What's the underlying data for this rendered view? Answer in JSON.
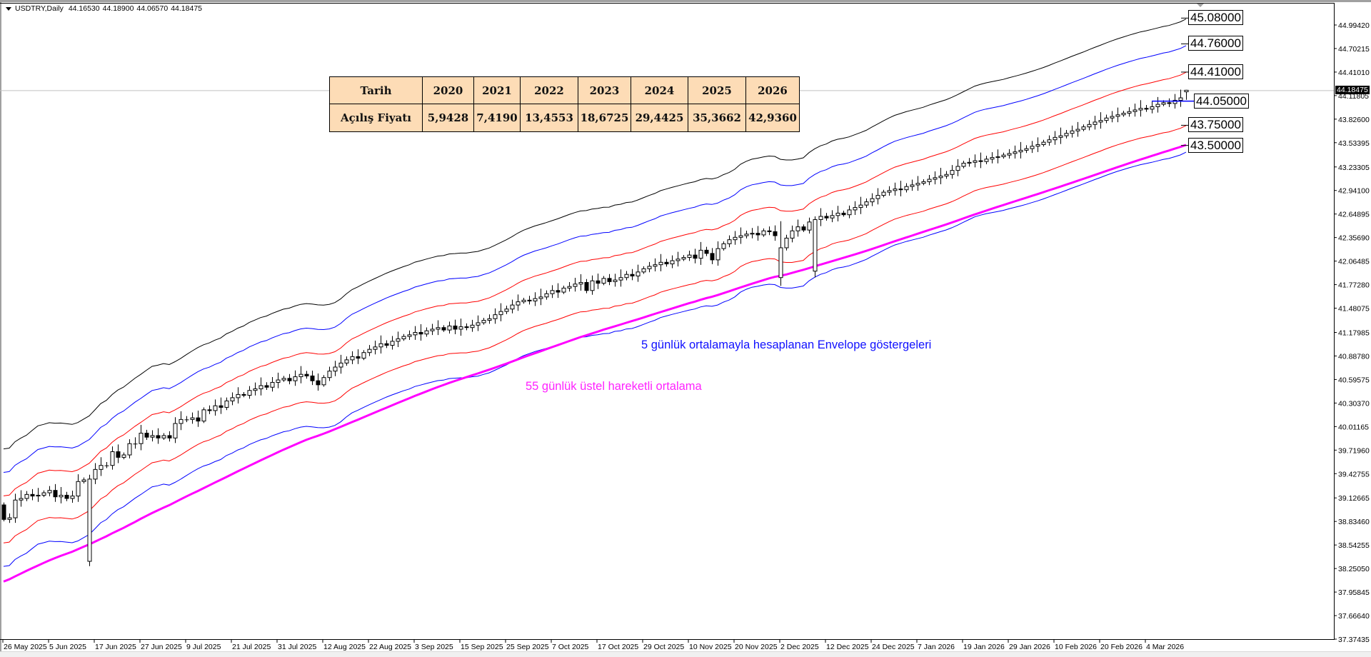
{
  "header": {
    "symbol": "USDTRY,Daily",
    "open": "44.16530",
    "high": "44.18900",
    "low": "44.06570",
    "close": "44.18475"
  },
  "table": {
    "header_label": "Tarih",
    "row_label": "Açılış Fiyatı",
    "years": [
      "2020",
      "2021",
      "2022",
      "2023",
      "2024",
      "2025",
      "2026"
    ],
    "opening_prices": [
      "5,9428",
      "7,4190",
      "13,4553",
      "18,6725",
      "29,4425",
      "35,3662",
      "42,9360"
    ]
  },
  "annotations": {
    "envelope": "5 günlük ortalamayla hesaplanan Envelope göstergeleri",
    "ema": "55 günlük üstel hareketli ortalama"
  },
  "price_labels": [
    {
      "text": "45.08000",
      "value": 45.08
    },
    {
      "text": "44.76000",
      "value": 44.76
    },
    {
      "text": "44.41000",
      "value": 44.41
    },
    {
      "text": "44.05000",
      "value": 44.05
    },
    {
      "text": "43.75000",
      "value": 43.75
    },
    {
      "text": "43.50000",
      "value": 43.5
    }
  ],
  "current_price": "44.18475",
  "colors": {
    "envelope_outer": "#000000",
    "envelope_mid": "#0000ff",
    "envelope_inner": "#ff0000",
    "ema": "#ff00ff",
    "price_line": "#c0c0c0",
    "table_bg": "#fddcb6"
  },
  "chart_data": {
    "type": "candlestick",
    "title": "USDTRY,Daily",
    "y_ticks": [
      "44.99420",
      "44.70215",
      "44.41010",
      "44.11805",
      "43.82600",
      "43.53395",
      "43.23305",
      "42.94100",
      "42.64895",
      "42.35690",
      "42.06485",
      "41.77280",
      "41.48075",
      "41.17985",
      "40.88780",
      "40.59575",
      "40.30370",
      "40.01165",
      "39.71960",
      "39.42755",
      "39.12665",
      "38.83460",
      "38.54255",
      "38.25050",
      "37.95845",
      "37.66640",
      "37.37435"
    ],
    "ylim": [
      37.37435,
      45.0
    ],
    "x_ticks": [
      {
        "bar": 0,
        "label": "26 May 2025"
      },
      {
        "bar": 8,
        "label": "5 Jun 2025"
      },
      {
        "bar": 16,
        "label": "17 Jun 2025"
      },
      {
        "bar": 24,
        "label": "27 Jun 2025"
      },
      {
        "bar": 32,
        "label": "9 Jul 2025"
      },
      {
        "bar": 40,
        "label": "21 Jul 2025"
      },
      {
        "bar": 48,
        "label": "31 Jul 2025"
      },
      {
        "bar": 56,
        "label": "12 Aug 2025"
      },
      {
        "bar": 64,
        "label": "22 Aug 2025"
      },
      {
        "bar": 72,
        "label": "3 Sep 2025"
      },
      {
        "bar": 80,
        "label": "15 Sep 2025"
      },
      {
        "bar": 88,
        "label": "25 Sep 2025"
      },
      {
        "bar": 96,
        "label": "7 Oct 2025"
      },
      {
        "bar": 104,
        "label": "17 Oct 2025"
      },
      {
        "bar": 112,
        "label": "29 Oct 2025"
      },
      {
        "bar": 120,
        "label": "10 Nov 2025"
      },
      {
        "bar": 128,
        "label": "20 Nov 2025"
      },
      {
        "bar": 136,
        "label": "2 Dec 2025"
      },
      {
        "bar": 144,
        "label": "12 Dec 2025"
      },
      {
        "bar": 152,
        "label": "24 Dec 2025"
      },
      {
        "bar": 160,
        "label": "7 Jan 2026"
      },
      {
        "bar": 168,
        "label": "19 Jan 2026"
      },
      {
        "bar": 176,
        "label": "29 Jan 2026"
      },
      {
        "bar": 184,
        "label": "10 Feb 2026"
      },
      {
        "bar": 192,
        "label": "20 Feb 2026"
      },
      {
        "bar": 200,
        "label": "4 Mar 2026"
      }
    ],
    "closes": [
      38.86,
      38.88,
      39.1,
      39.12,
      39.17,
      39.15,
      39.16,
      39.19,
      39.22,
      39.14,
      39.16,
      39.12,
      39.15,
      39.33,
      39.35,
      39.36,
      39.48,
      39.53,
      39.53,
      39.7,
      39.63,
      39.66,
      39.8,
      39.8,
      39.93,
      39.88,
      39.9,
      39.87,
      39.9,
      39.87,
      40.05,
      40.1,
      40.1,
      40.12,
      40.08,
      40.22,
      40.21,
      40.27,
      40.25,
      40.33,
      40.37,
      40.41,
      40.4,
      40.46,
      40.48,
      40.52,
      40.5,
      40.56,
      40.59,
      40.61,
      40.58,
      40.63,
      40.66,
      40.64,
      40.58,
      40.53,
      40.62,
      40.7,
      40.75,
      40.8,
      40.84,
      40.88,
      40.86,
      40.93,
      40.97,
      41.0,
      41.04,
      41.02,
      41.07,
      41.1,
      41.13,
      41.15,
      41.18,
      41.16,
      41.2,
      41.22,
      41.24,
      41.21,
      41.26,
      41.22,
      41.25,
      41.24,
      41.27,
      41.3,
      41.33,
      41.35,
      41.4,
      41.44,
      41.47,
      41.52,
      41.56,
      41.58,
      41.57,
      41.6,
      41.62,
      41.66,
      41.7,
      41.68,
      41.73,
      41.75,
      41.78,
      41.8,
      41.7,
      41.82,
      41.79,
      41.85,
      41.81,
      41.83,
      41.86,
      41.9,
      41.88,
      41.93,
      41.97,
      42.0,
      42.02,
      42.05,
      42.03,
      42.07,
      42.09,
      42.11,
      42.14,
      42.1,
      42.2,
      42.16,
      42.08,
      42.22,
      42.28,
      42.33,
      42.36,
      42.38,
      42.4,
      42.41,
      42.39,
      42.44,
      42.43,
      42.38,
      42.23,
      42.35,
      42.44,
      42.49,
      42.45,
      42.55,
      42.58,
      42.62,
      42.6,
      42.63,
      42.66,
      42.64,
      42.7,
      42.73,
      42.76,
      42.8,
      42.84,
      42.88,
      42.92,
      42.94,
      42.96,
      42.95,
      42.99,
      43.01,
      43.03,
      43.05,
      43.08,
      43.1,
      43.12,
      43.14,
      43.19,
      43.24,
      43.28,
      43.29,
      43.31,
      43.3,
      43.33,
      43.35,
      43.36,
      43.38,
      43.4,
      43.42,
      43.44,
      43.46,
      43.49,
      43.51,
      43.54,
      43.57,
      43.6,
      43.62,
      43.65,
      43.68,
      43.7,
      43.73,
      43.76,
      43.79,
      43.81,
      43.84,
      43.86,
      43.88,
      43.9,
      43.92,
      43.94,
      43.96,
      43.95,
      43.98,
      44.01,
      44.03,
      44.02,
      44.06,
      44.09,
      44.18475
    ],
    "notable_bars": [
      {
        "date": "16 Jun 2025",
        "open": 38.34,
        "low": 38.28
      },
      {
        "date": "2 Dec 2025",
        "open": 41.86,
        "high": 42.56
      },
      {
        "date": "10 Dec 2025",
        "open": 41.94,
        "high": 42.62
      }
    ],
    "last_bar": {
      "open": 44.1653,
      "high": 44.189,
      "low": 44.0657,
      "close": 44.18475
    },
    "indicators": {
      "envelope": {
        "ma_period": 5,
        "deviations_percent": [
          2.25,
          1.5,
          0.75,
          -0.75,
          -1.5
        ]
      },
      "ema": {
        "period": 55
      }
    },
    "grid": false
  }
}
